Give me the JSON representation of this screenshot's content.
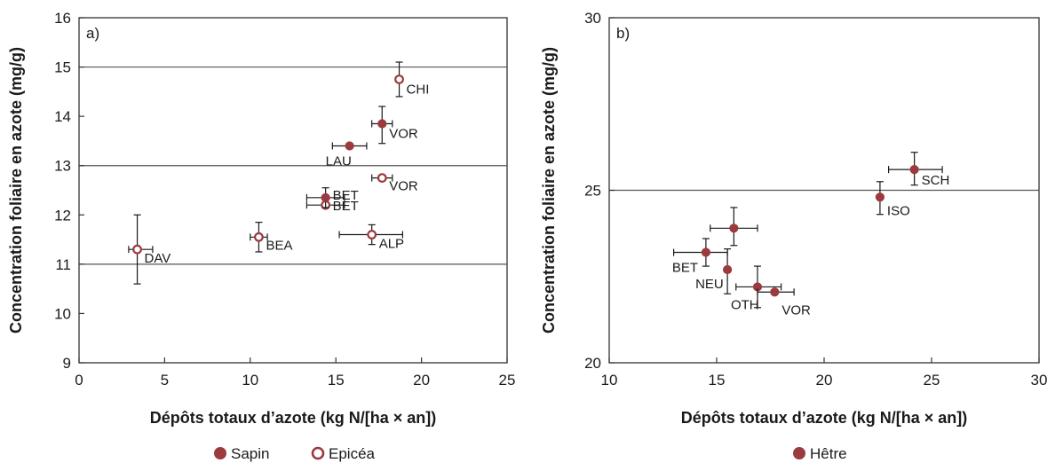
{
  "colors": {
    "marker": "#9b3a3f",
    "frame": "#333333",
    "refline": "#555555",
    "errorbar": "#1a1a1a"
  },
  "chart_data": [
    {
      "type": "scatter",
      "panel_tag": "a)",
      "xlabel": "Dépôts totaux d’azote (kg N/[ha × an])",
      "ylabel": "Concentration foliaire en azote (mg/g)",
      "xlim": [
        0,
        25
      ],
      "ylim": [
        9,
        16
      ],
      "xticks": [
        "0",
        "5",
        "10",
        "15",
        "20",
        "25"
      ],
      "yticks": [
        "9",
        "10",
        "11",
        "12",
        "13",
        "14",
        "15",
        "16"
      ],
      "reference_lines": [
        11,
        13,
        15
      ],
      "legend": [
        {
          "name": "Sapin",
          "marker": "filled"
        },
        {
          "name": "Epicéa",
          "marker": "open"
        }
      ],
      "points": [
        {
          "label": "DAV",
          "species": "Epicéa",
          "x": 3.4,
          "y": 11.3,
          "xerr": [
            2.9,
            4.3
          ],
          "yerr": [
            10.6,
            12.0
          ]
        },
        {
          "label": "BEA",
          "species": "Epicéa",
          "x": 10.5,
          "y": 11.55,
          "xerr": [
            10.0,
            11.0
          ],
          "yerr": [
            11.25,
            11.85
          ]
        },
        {
          "label": "ALP",
          "species": "Epicéa",
          "x": 17.1,
          "y": 11.6,
          "xerr": [
            15.2,
            18.9
          ],
          "yerr": [
            11.4,
            11.8
          ]
        },
        {
          "label": "BET",
          "species": "Epicéa",
          "x": 14.4,
          "y": 12.2,
          "xerr": [
            13.3,
            15.5
          ],
          "yerr": [
            12.2,
            12.2
          ]
        },
        {
          "label": "BET",
          "species": "Sapin",
          "x": 14.4,
          "y": 12.35,
          "xerr": [
            13.3,
            15.5
          ],
          "yerr": [
            12.15,
            12.55
          ]
        },
        {
          "label": "VOR",
          "species": "Epicéa",
          "x": 17.7,
          "y": 12.75,
          "xerr": [
            17.1,
            18.3
          ],
          "yerr": [
            12.75,
            12.75
          ]
        },
        {
          "label": "LAU",
          "species": "Sapin",
          "x": 15.8,
          "y": 13.4,
          "xerr": [
            14.8,
            16.8
          ],
          "yerr": [
            13.4,
            13.4
          ]
        },
        {
          "label": "VOR",
          "species": "Sapin",
          "x": 17.7,
          "y": 13.85,
          "xerr": [
            17.1,
            18.3
          ],
          "yerr": [
            13.45,
            14.2
          ]
        },
        {
          "label": "CHI",
          "species": "Epicéa",
          "x": 18.7,
          "y": 14.75,
          "xerr": [
            18.7,
            18.7
          ],
          "yerr": [
            14.4,
            15.1
          ]
        }
      ]
    },
    {
      "type": "scatter",
      "panel_tag": "b)",
      "xlabel": "Dépôts totaux d’azote (kg N/[ha × an])",
      "ylabel": "Concentration foliaire en azote (mg/g)",
      "xlim": [
        10,
        30
      ],
      "ylim": [
        20,
        30
      ],
      "xticks": [
        "10",
        "15",
        "20",
        "25",
        "30"
      ],
      "yticks": [
        "20",
        "25",
        "30"
      ],
      "reference_lines": [
        25
      ],
      "legend": [
        {
          "name": "Hêtre",
          "marker": "filled"
        }
      ],
      "points": [
        {
          "label": "BET",
          "species": "Hêtre",
          "x": 14.5,
          "y": 23.2,
          "xerr": [
            13.0,
            15.5
          ],
          "yerr": [
            22.8,
            23.6
          ]
        },
        {
          "label": "",
          "species": "Hêtre",
          "x": 15.8,
          "y": 23.9,
          "xerr": [
            14.7,
            16.9
          ],
          "yerr": [
            23.4,
            24.5
          ]
        },
        {
          "label": "NEU",
          "species": "Hêtre",
          "x": 15.5,
          "y": 22.7,
          "xerr": [
            15.5,
            15.5
          ],
          "yerr": [
            22.0,
            23.3
          ]
        },
        {
          "label": "OTH",
          "species": "Hêtre",
          "x": 16.9,
          "y": 22.2,
          "xerr": [
            15.9,
            18.0
          ],
          "yerr": [
            21.6,
            22.8
          ]
        },
        {
          "label": "VOR",
          "species": "Hêtre",
          "x": 17.7,
          "y": 22.05,
          "xerr": [
            16.9,
            18.6
          ],
          "yerr": [
            22.05,
            22.05
          ]
        },
        {
          "label": "ISO",
          "species": "Hêtre",
          "x": 22.6,
          "y": 24.8,
          "xerr": [
            22.6,
            22.6
          ],
          "yerr": [
            24.3,
            25.25
          ]
        },
        {
          "label": "SCH",
          "species": "Hêtre",
          "x": 24.2,
          "y": 25.6,
          "xerr": [
            23.0,
            25.5
          ],
          "yerr": [
            25.15,
            26.1
          ]
        }
      ]
    }
  ]
}
